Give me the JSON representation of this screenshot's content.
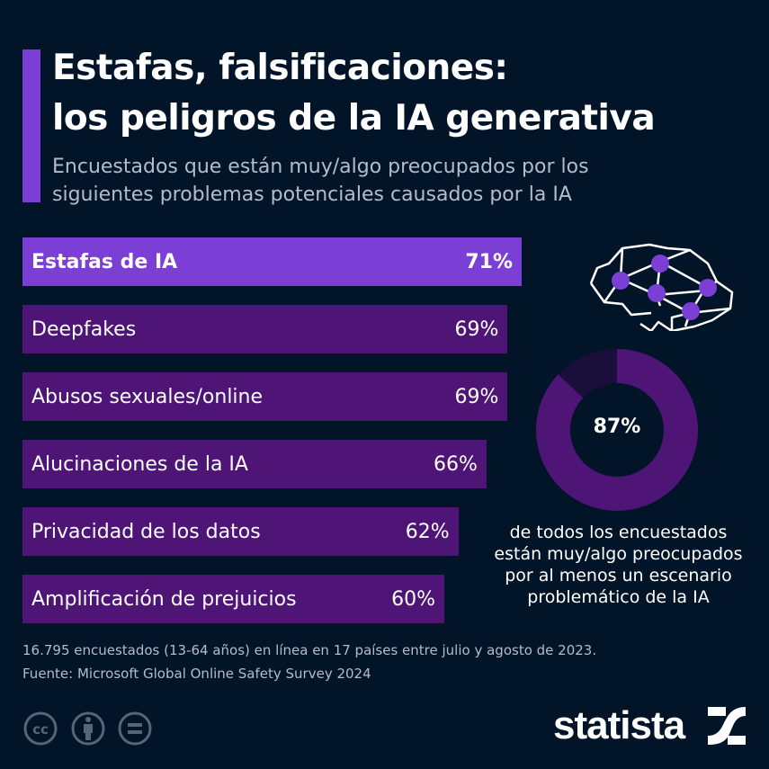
{
  "header": {
    "title_lines": [
      "Estafas, falsificaciones:",
      "los peligros de la IA generativa"
    ],
    "subtitle_lines": [
      "Encuestados que están muy/algo preocupados por los",
      "siguientes problemas potenciales causados por la IA"
    ]
  },
  "chart_data": [
    {
      "type": "bar",
      "orientation": "horizontal",
      "categories": [
        "Estafas de IA",
        "Deepfakes",
        "Abusos sexuales/online",
        "Alucinaciones de la IA",
        "Privacidad de los datos",
        "Amplificación de prejuicios"
      ],
      "values": [
        71,
        69,
        69,
        66,
        62,
        60
      ],
      "labels": [
        "71%",
        "69%",
        "69%",
        "66%",
        "62%",
        "60%"
      ],
      "unit": "%",
      "highlight_index": 0,
      "colors": {
        "highlight": "#7b3fd6",
        "default": "#4e1577"
      },
      "grid": false
    },
    {
      "type": "pie",
      "variant": "donut",
      "value": 87,
      "label": "87%",
      "caption_lines": [
        "de todos los encuestados",
        "están muy/algo preocupados",
        "por al menos un escenario",
        "problemático de la IA"
      ],
      "colors": {
        "filled": "#4e1577",
        "rest": "#1a0f3a"
      }
    }
  ],
  "footer": {
    "note": "16.795 encuestados (13-64 años) en línea en 17 países entre julio y agosto de 2023.",
    "source": "Fuente: Microsoft Global Online Safety Survey 2024",
    "logo": "statista",
    "license_icons": [
      "cc-icon",
      "by-icon",
      "nd-icon"
    ]
  },
  "colors": {
    "background": "#021428",
    "accent": "#7b3fd6",
    "muted_text": "#b4bccb"
  }
}
